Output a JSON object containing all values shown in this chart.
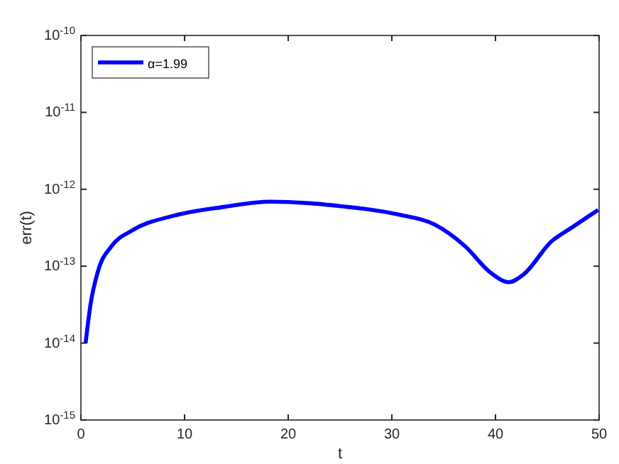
{
  "chart_data": {
    "type": "line",
    "xlabel": "t",
    "ylabel": "err(t)",
    "log": "y",
    "grid": false,
    "legend": "top left",
    "marker": "none",
    "line_style": "solid",
    "xlim": [
      0,
      50
    ],
    "xticks": [
      0,
      10,
      20,
      30,
      40,
      50
    ],
    "ylim": [
      1e-15,
      1e-10
    ],
    "yticks": [
      {
        "value": 1e-15,
        "label": "10$^{-15}$"
      },
      {
        "value": 1e-14,
        "label": "10$^{-14}$"
      },
      {
        "value": 1e-13,
        "label": "10$^{-13}$"
      },
      {
        "value": 1e-12,
        "label": "10$^{-12}$"
      },
      {
        "value": 1e-11,
        "label": "10$^{-11}$"
      },
      {
        "value": 1e-10,
        "label": "10$^{-10}$"
      }
    ],
    "series": [
      {
        "name": "α=1.99",
        "color": "#0000ff",
        "x": [
          0.45,
          0.93,
          1.68,
          2.92,
          4.9,
          8.86,
          13.8,
          18.3,
          22,
          25.7,
          27.2,
          30.6,
          34.1,
          37.1,
          39.5,
          41.3,
          42.7,
          45.4,
          47.4,
          49.9
        ],
        "values": [
          1e-14,
          3.2e-14,
          8.9e-14,
          1.8e-13,
          2.9e-13,
          4.5e-13,
          5.9e-13,
          6.9e-13,
          6.6e-13,
          5.9e-13,
          5.6e-13,
          4.7e-13,
          3.5e-13,
          1.8e-13,
          8.3e-14,
          6.2e-14,
          7.8e-14,
          2.1e-13,
          3.2e-13,
          5.4e-13
        ]
      }
    ]
  }
}
